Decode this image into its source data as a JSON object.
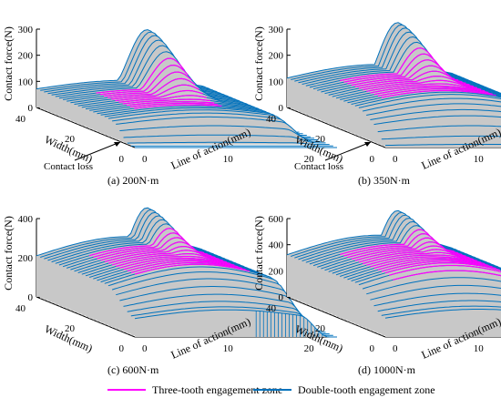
{
  "colors": {
    "three_tooth": "#ff00ff",
    "double_tooth": "#0072bd",
    "surface": "#c8c8c8",
    "axis": "#000000"
  },
  "legend": {
    "three_tooth_label": "Three-tooth engagement zone",
    "double_tooth_label": "Double-tooth engagement zone"
  },
  "chart_data": [
    {
      "type": "surface3d",
      "caption": "(a) 200N·m",
      "zlabel": "Contact force(N)",
      "ylabel": "Width(mm)",
      "xlabel": "Line of action(mm)",
      "z_ticks": [
        "0",
        "100",
        "200",
        "300"
      ],
      "zlim": [
        0,
        300
      ],
      "peak_force": 275,
      "plateau_force": 95,
      "width_ticks": [
        "0",
        "20",
        "40"
      ],
      "loa_ticks": [
        "0",
        "10",
        "20"
      ],
      "annotation": "Contact loss"
    },
    {
      "type": "surface3d",
      "caption": "(b) 350N·m",
      "zlabel": "Contact force(N)",
      "ylabel": "Width(mm)",
      "xlabel": "Line of action(mm)",
      "z_ticks": [
        "0",
        "100",
        "200",
        "300"
      ],
      "zlim": [
        0,
        300
      ],
      "peak_force": 300,
      "plateau_force": 150,
      "width_ticks": [
        "0",
        "20",
        "40"
      ],
      "loa_ticks": [
        "0",
        "10",
        "20"
      ],
      "annotation": "Contact loss"
    },
    {
      "type": "surface3d",
      "caption": "(c) 600N·m",
      "zlabel": "Contact force(N)",
      "ylabel": "Width(mm)",
      "xlabel": "Line of action(mm)",
      "z_ticks": [
        "0",
        "200",
        "400"
      ],
      "zlim": [
        0,
        400
      ],
      "peak_force": 420,
      "plateau_force": 280,
      "width_ticks": [
        "0",
        "20",
        "40"
      ],
      "loa_ticks": [
        "0",
        "10",
        "20"
      ],
      "annotation": ""
    },
    {
      "type": "surface3d",
      "caption": "(d) 1000N·m",
      "zlabel": "Contact force(N)",
      "ylabel": "Width(mm)",
      "xlabel": "Line of action(mm)",
      "z_ticks": [
        "0",
        "200",
        "400",
        "600"
      ],
      "zlim": [
        0,
        600
      ],
      "peak_force": 610,
      "plateau_force": 430,
      "width_ticks": [
        "0",
        "20",
        "40"
      ],
      "loa_ticks": [
        "0",
        "10",
        "20"
      ],
      "annotation": ""
    }
  ]
}
